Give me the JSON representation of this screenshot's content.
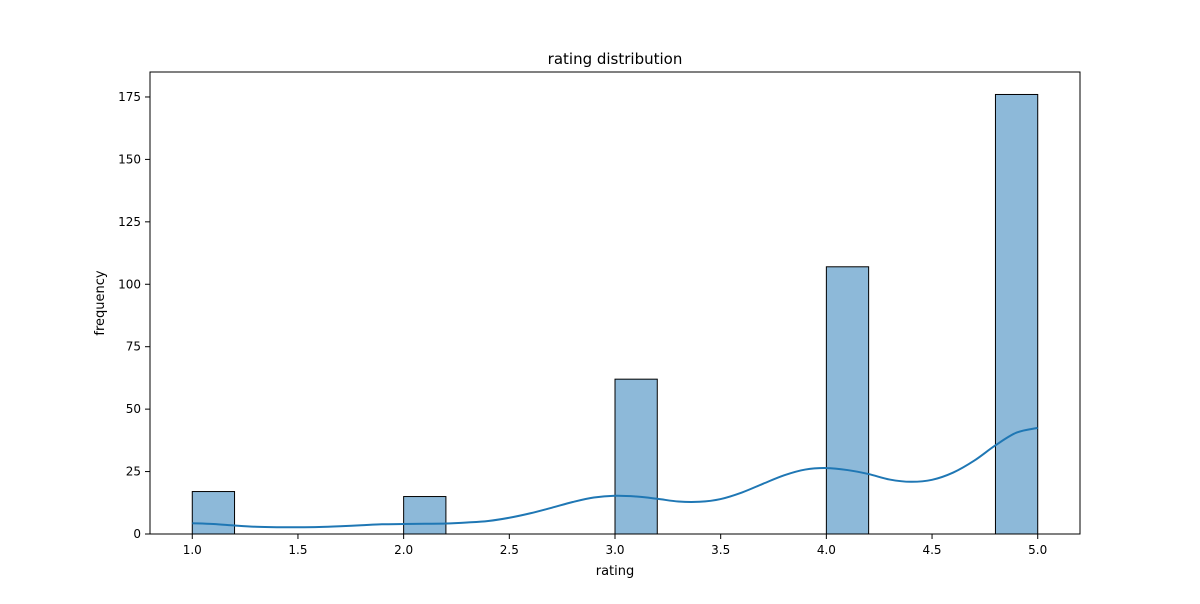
{
  "chart_data": {
    "type": "bar",
    "title": "rating distribution",
    "xlabel": "rating",
    "ylabel": "frequency",
    "xlim": [
      0.8,
      5.2
    ],
    "ylim": [
      0,
      185
    ],
    "x_ticks": [
      1.0,
      1.5,
      2.0,
      2.5,
      3.0,
      3.5,
      4.0,
      4.5,
      5.0
    ],
    "x_tick_labels": [
      "1.0",
      "1.5",
      "2.0",
      "2.5",
      "3.0",
      "3.5",
      "4.0",
      "4.5",
      "5.0"
    ],
    "y_ticks": [
      0,
      25,
      50,
      75,
      100,
      125,
      150,
      175
    ],
    "y_tick_labels": [
      "0",
      "25",
      "50",
      "75",
      "100",
      "125",
      "150",
      "175"
    ],
    "bins": [
      {
        "x0": 1.0,
        "x1": 1.2,
        "count": 17
      },
      {
        "x0": 2.0,
        "x1": 2.2,
        "count": 15
      },
      {
        "x0": 3.0,
        "x1": 3.2,
        "count": 62
      },
      {
        "x0": 4.0,
        "x1": 4.2,
        "count": 107
      },
      {
        "x0": 4.8,
        "x1": 5.0,
        "count": 176
      }
    ],
    "kde": {
      "x": [
        1.0,
        1.1,
        1.2,
        1.3,
        1.4,
        1.5,
        1.6,
        1.7,
        1.8,
        1.9,
        2.0,
        2.1,
        2.2,
        2.3,
        2.4,
        2.5,
        2.6,
        2.7,
        2.8,
        2.9,
        3.0,
        3.1,
        3.2,
        3.3,
        3.4,
        3.5,
        3.6,
        3.7,
        3.8,
        3.9,
        4.0,
        4.1,
        4.2,
        4.3,
        4.4,
        4.5,
        4.6,
        4.7,
        4.8,
        4.9,
        5.0
      ],
      "y": [
        4.3,
        4.0,
        3.4,
        2.9,
        2.7,
        2.7,
        2.8,
        3.1,
        3.5,
        3.9,
        4.0,
        4.1,
        4.2,
        4.6,
        5.2,
        6.5,
        8.3,
        10.5,
        12.8,
        14.6,
        15.3,
        15.0,
        14.1,
        13.0,
        12.9,
        14.0,
        16.6,
        20.1,
        23.5,
        25.8,
        26.4,
        25.6,
        24.0,
        21.8,
        20.9,
        21.7,
        24.6,
        29.4,
        35.5,
        40.6,
        42.5
      ]
    },
    "colors": {
      "bar_fill": "#8db9d9",
      "bar_edge": "#000000",
      "kde_line": "#1f77b4",
      "axes": "#000000"
    },
    "grid": false,
    "legend": "none"
  }
}
